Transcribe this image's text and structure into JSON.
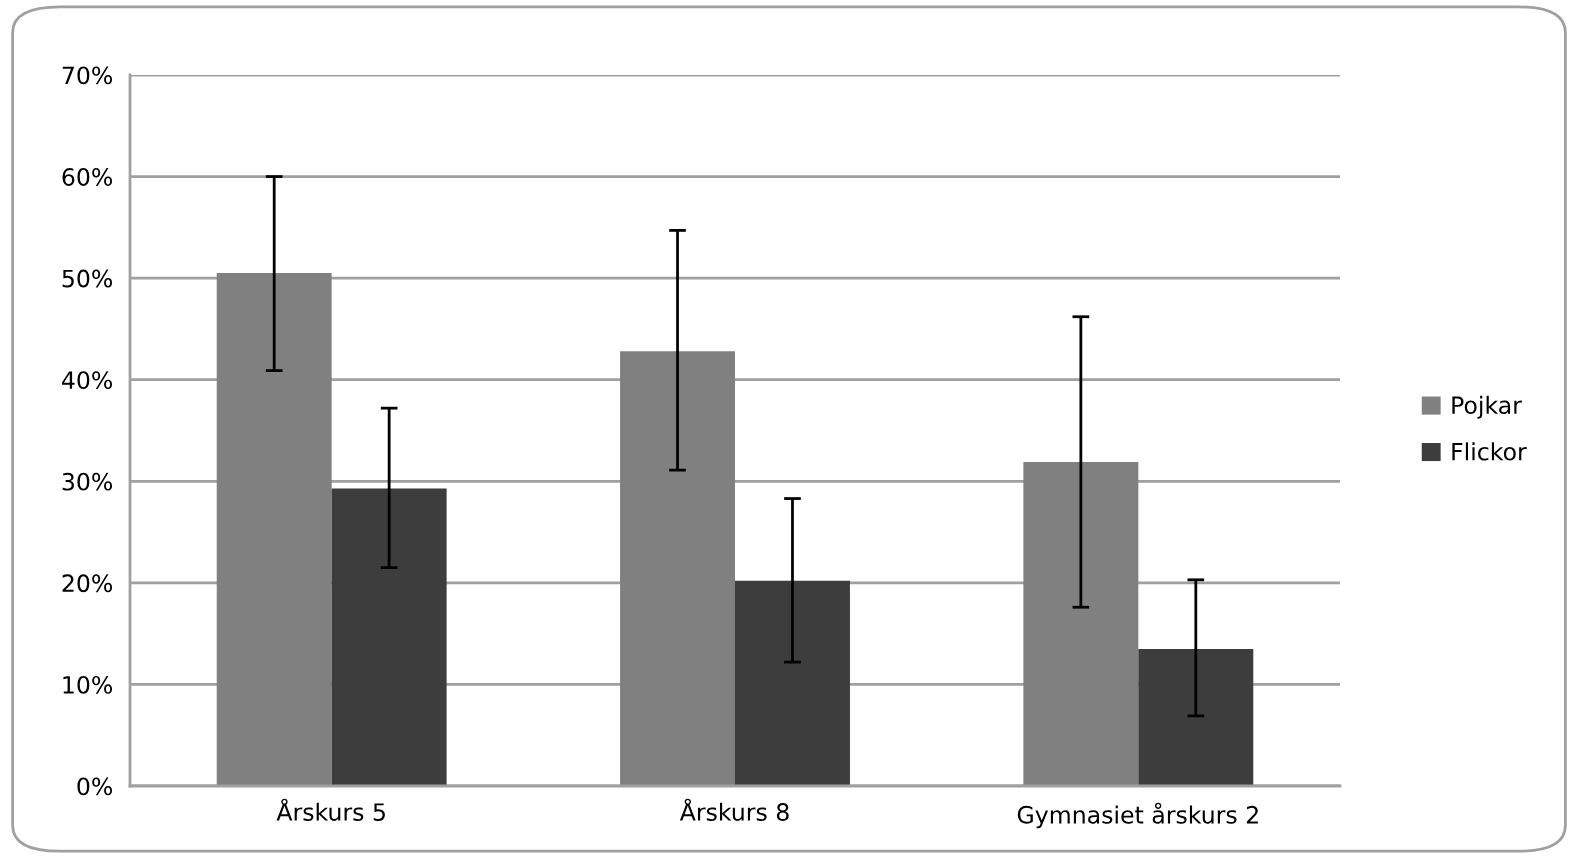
{
  "chart_data": {
    "type": "bar",
    "categories": [
      "Årskurs 5",
      "Årskurs 8",
      "Gymnasiet årskurs 2"
    ],
    "series": [
      {
        "name": "Pojkar",
        "color": "#808080",
        "values": [
          50.5,
          42.8,
          31.9
        ],
        "errors": [
          [
            40.9,
            60.0
          ],
          [
            31.1,
            54.7
          ],
          [
            17.6,
            46.2
          ]
        ]
      },
      {
        "name": "Flickor",
        "color": "#3d3d3d",
        "values": [
          29.3,
          20.2,
          13.5
        ],
        "errors": [
          [
            21.5,
            37.2
          ],
          [
            12.2,
            28.3
          ],
          [
            6.9,
            20.3
          ]
        ]
      }
    ],
    "ylim": [
      0,
      70
    ],
    "yticks": [
      {
        "value": 0,
        "label": "0%"
      },
      {
        "value": 10,
        "label": "10%"
      },
      {
        "value": 20,
        "label": "20%"
      },
      {
        "value": 30,
        "label": "30%"
      },
      {
        "value": 40,
        "label": "40%"
      },
      {
        "value": 50,
        "label": "50%"
      },
      {
        "value": 60,
        "label": "60%"
      },
      {
        "value": 70,
        "label": "70%"
      }
    ],
    "grid": "y",
    "legend": "right"
  }
}
